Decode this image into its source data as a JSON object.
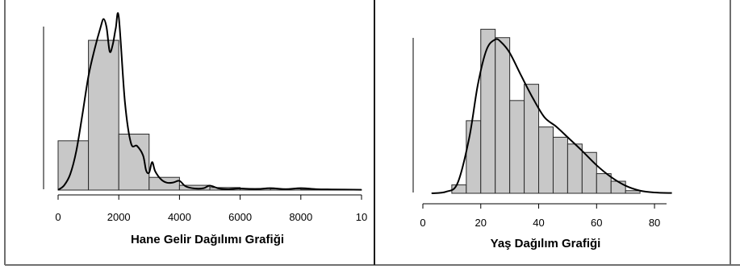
{
  "chart_data": [
    {
      "type": "bar",
      "title": "Hane Gelir Dağılımı Grafiği",
      "xlabel": "",
      "ylabel": "",
      "xlim": [
        0,
        10000
      ],
      "x_ticks": [
        "0",
        "2000",
        "4000",
        "6000",
        "8000",
        "10"
      ],
      "bins": [
        {
          "x0": 0,
          "x1": 1000,
          "value": 0.000155
        },
        {
          "x0": 1000,
          "x1": 2000,
          "value": 0.000471
        },
        {
          "x0": 2000,
          "x1": 3000,
          "value": 0.000176
        },
        {
          "x0": 3000,
          "x1": 4000,
          "value": 4e-05
        },
        {
          "x0": 4000,
          "x1": 5000,
          "value": 1.5e-05
        },
        {
          "x0": 5000,
          "x1": 6000,
          "value": 8e-06
        },
        {
          "x0": 6000,
          "x1": 7000,
          "value": 5e-06
        },
        {
          "x0": 7000,
          "x1": 8000,
          "value": 4e-06
        },
        {
          "x0": 8000,
          "x1": 9000,
          "value": 2e-06
        },
        {
          "x0": 9000,
          "x1": 10000,
          "value": 1e-06
        }
      ],
      "density": {
        "x": [
          0,
          200,
          400,
          600,
          800,
          1000,
          1200,
          1400,
          1500,
          1600,
          1700,
          1800,
          1900,
          2000,
          2200,
          2400,
          2600,
          2800,
          2900,
          3000,
          3100,
          3200,
          3400,
          3600,
          3800,
          4000,
          4200,
          4500,
          4800,
          5000,
          5300,
          5600,
          6000,
          6500,
          7000,
          7500,
          8000,
          8500,
          9000,
          10000
        ],
        "y": [
          5e-07,
          1.5e-05,
          5e-05,
          0.000123,
          0.000237,
          0.000358,
          0.000442,
          0.000512,
          0.000538,
          0.00051,
          0.000436,
          0.000457,
          0.000509,
          0.000544,
          0.000279,
          0.000148,
          0.000139,
          0.000109,
          6.2e-05,
          5.5e-05,
          8.8e-05,
          5.9e-05,
          3.3e-05,
          2.3e-05,
          2.4e-05,
          2.9e-05,
          1.2e-05,
          5e-06,
          6e-06,
          1.4e-05,
          5e-06,
          3e-06,
          5e-06,
          3e-06,
          6e-06,
          3e-06,
          6e-06,
          3e-06,
          2e-06,
          1e-06
        ]
      },
      "ylim": [
        0,
        0.000575
      ],
      "grid": false
    },
    {
      "type": "bar",
      "title": "Yaş Dağılım Grafiği",
      "xlabel": "",
      "ylabel": "",
      "xlim": [
        0,
        85
      ],
      "x_ticks": [
        "0",
        "20",
        "40",
        "60",
        "80"
      ],
      "bins": [
        {
          "x0": 10,
          "x1": 15,
          "value": 0.0032
        },
        {
          "x0": 15,
          "x1": 20,
          "value": 0.0277
        },
        {
          "x0": 20,
          "x1": 25,
          "value": 0.0626
        },
        {
          "x0": 25,
          "x1": 30,
          "value": 0.0594
        },
        {
          "x0": 30,
          "x1": 35,
          "value": 0.0354
        },
        {
          "x0": 35,
          "x1": 40,
          "value": 0.0416
        },
        {
          "x0": 40,
          "x1": 45,
          "value": 0.0253
        },
        {
          "x0": 45,
          "x1": 50,
          "value": 0.0214
        },
        {
          "x0": 50,
          "x1": 55,
          "value": 0.0188
        },
        {
          "x0": 55,
          "x1": 60,
          "value": 0.0156
        },
        {
          "x0": 60,
          "x1": 65,
          "value": 0.0075
        },
        {
          "x0": 65,
          "x1": 70,
          "value": 0.0046
        },
        {
          "x0": 70,
          "x1": 75,
          "value": 0.001
        }
      ],
      "density": {
        "x": [
          3,
          8,
          12,
          16,
          19,
          22,
          25,
          27,
          30,
          34,
          38,
          42,
          46,
          50,
          55,
          60,
          65,
          70,
          75,
          80,
          86
        ],
        "y": [
          0.0,
          0.0006,
          0.0039,
          0.0211,
          0.0415,
          0.0548,
          0.0587,
          0.0577,
          0.0536,
          0.0448,
          0.0363,
          0.029,
          0.0255,
          0.0214,
          0.0162,
          0.0107,
          0.0062,
          0.0029,
          0.001,
          0.0003,
          0.0001
        ]
      },
      "ylim": [
        0,
        0.067
      ],
      "grid": false
    }
  ]
}
